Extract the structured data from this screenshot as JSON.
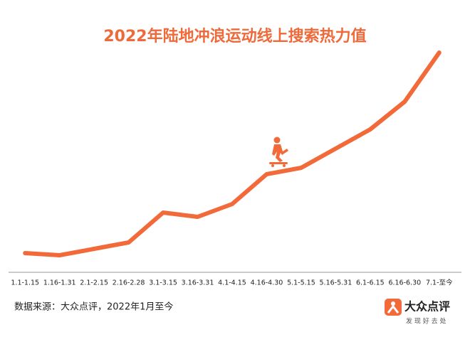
{
  "chart_data": {
    "type": "line",
    "title": "2022年陆地冲浪运动线上搜索热力值",
    "categories": [
      "1.1-1.15",
      "1.16-1.31",
      "2.1-2.15",
      "2.16-2.28",
      "3.1-3.15",
      "3.16-3.31",
      "4.1-4.15",
      "4.16-4.30",
      "5.1-5.15",
      "5.16-5.31",
      "6.1-6.15",
      "6.16-6.30",
      "7.1-至今"
    ],
    "values": [
      8,
      7,
      10,
      13,
      27,
      25,
      31,
      45,
      48,
      57,
      66,
      79,
      102
    ],
    "color": "#f26a3a",
    "ylim": [
      0,
      105
    ]
  },
  "footer": {
    "source": "数据来源：大众点评，2022年1月至今",
    "logo": "大众点评",
    "slogan": "发 现 好 去 处"
  }
}
